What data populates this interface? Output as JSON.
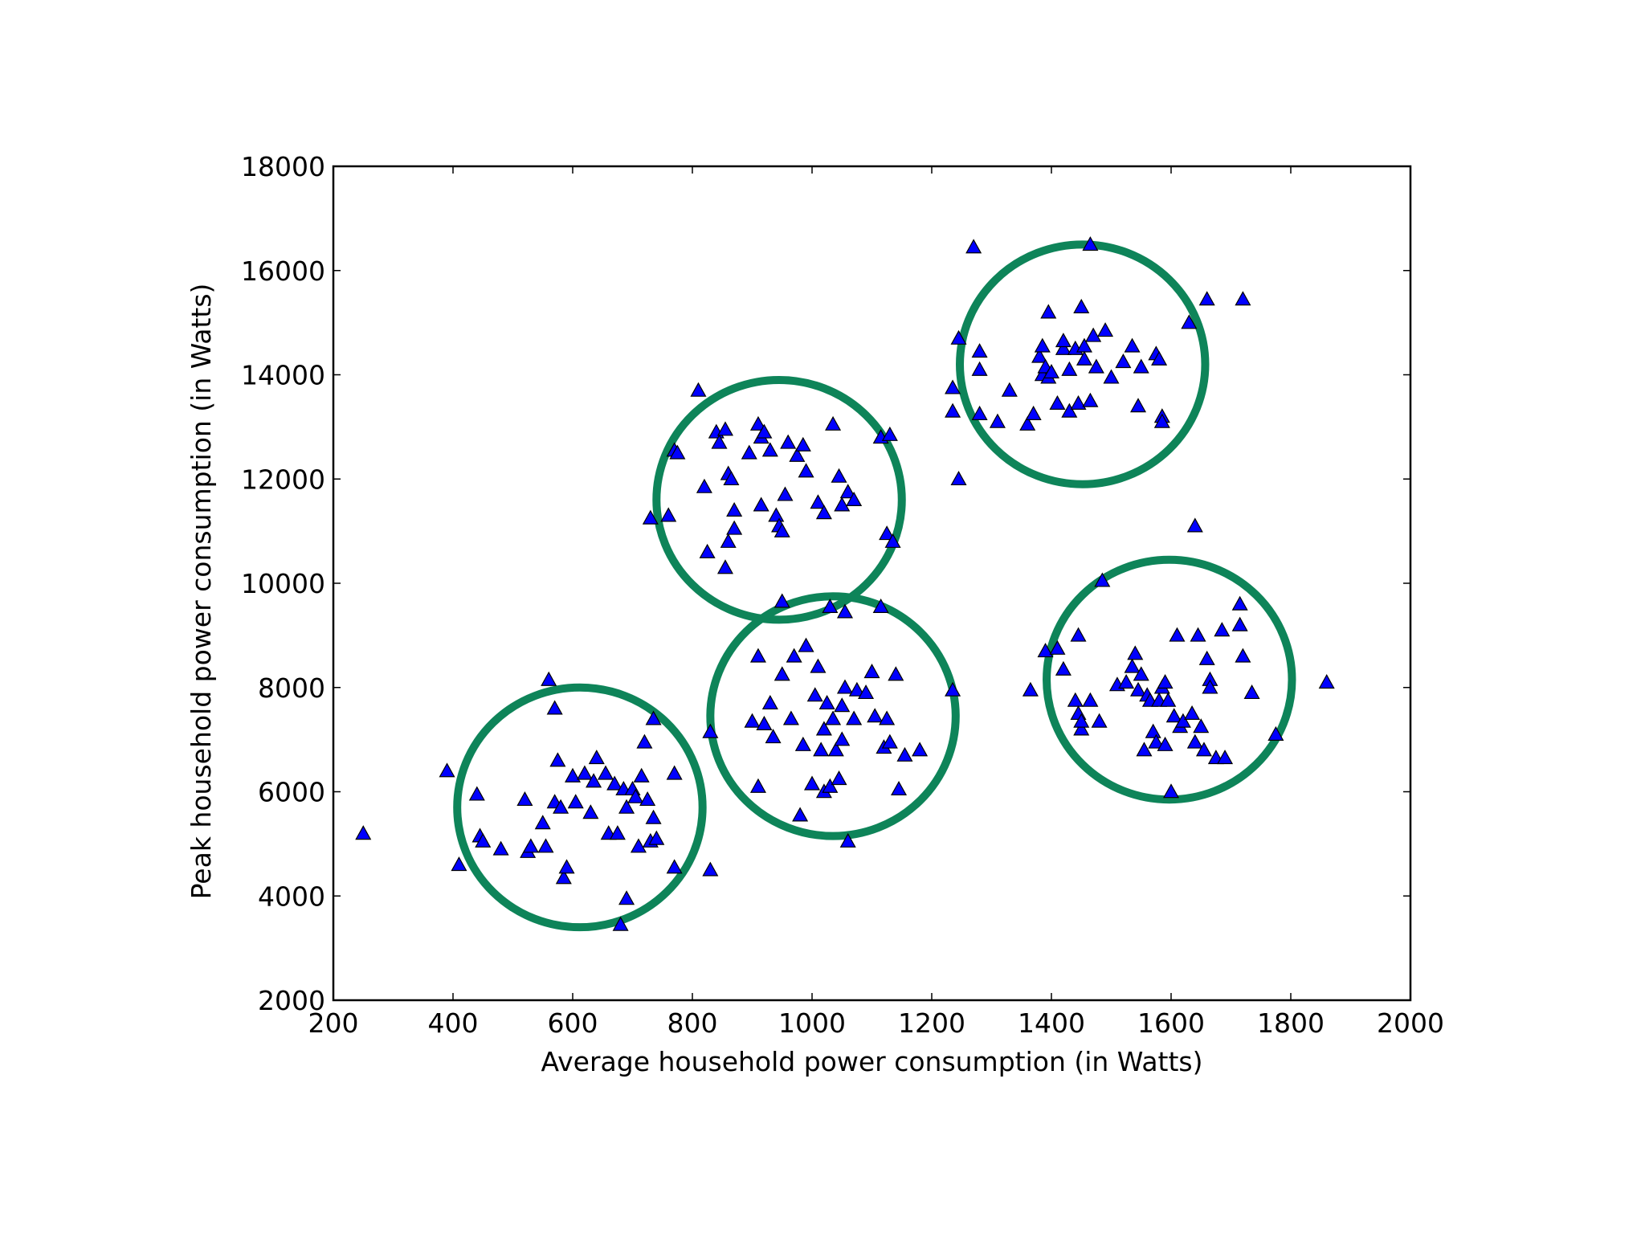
{
  "chart_data": {
    "type": "scatter",
    "title": "",
    "xlabel": "Average household power consumption (in Watts)",
    "ylabel": "Peak household power consumption (in Watts)",
    "xlim": [
      200,
      2000
    ],
    "ylim": [
      2000,
      18000
    ],
    "x_ticks": [
      200,
      400,
      600,
      800,
      1000,
      1200,
      1400,
      1600,
      1800,
      2000
    ],
    "x_tick_labels": [
      "200",
      "400",
      "600",
      "800",
      "1000",
      "1200",
      "1400",
      "1600",
      "1800",
      "2000"
    ],
    "y_ticks": [
      2000,
      4000,
      6000,
      8000,
      10000,
      12000,
      14000,
      16000,
      18000
    ],
    "y_tick_labels": [
      "2000",
      "4000",
      "6000",
      "8000",
      "10000",
      "12000",
      "14000",
      "16000",
      "18000"
    ],
    "grid": false,
    "legend": null,
    "marker": "triangle",
    "marker_color": "#0000ff",
    "marker_edge_color": "#000000",
    "circle_color": "#0e8459",
    "series": [
      {
        "points": [
          [
            250,
            5200
          ],
          [
            390,
            6400
          ],
          [
            410,
            4600
          ],
          [
            440,
            5950
          ],
          [
            445,
            5150
          ],
          [
            450,
            5050
          ],
          [
            480,
            4900
          ],
          [
            520,
            5850
          ],
          [
            525,
            4850
          ],
          [
            530,
            4950
          ],
          [
            550,
            5400
          ],
          [
            555,
            4950
          ],
          [
            560,
            8150
          ],
          [
            570,
            7600
          ],
          [
            575,
            6600
          ],
          [
            570,
            5800
          ],
          [
            580,
            5700
          ],
          [
            585,
            4350
          ],
          [
            590,
            4550
          ],
          [
            600,
            6300
          ],
          [
            605,
            5800
          ],
          [
            620,
            6350
          ],
          [
            630,
            5600
          ],
          [
            635,
            6200
          ],
          [
            640,
            6650
          ],
          [
            655,
            6350
          ],
          [
            660,
            5200
          ],
          [
            670,
            6150
          ],
          [
            675,
            5200
          ],
          [
            680,
            3450
          ],
          [
            685,
            6050
          ],
          [
            690,
            3950
          ],
          [
            690,
            5700
          ],
          [
            700,
            6050
          ],
          [
            705,
            5900
          ],
          [
            710,
            4950
          ],
          [
            715,
            6300
          ],
          [
            720,
            6950
          ],
          [
            725,
            5850
          ],
          [
            730,
            5050
          ],
          [
            735,
            5500
          ],
          [
            735,
            7400
          ],
          [
            740,
            5100
          ],
          [
            770,
            6350
          ],
          [
            770,
            4550
          ],
          [
            830,
            4500
          ],
          [
            830,
            7150
          ],
          [
            900,
            7350
          ],
          [
            910,
            6100
          ],
          [
            910,
            8600
          ],
          [
            920,
            7300
          ],
          [
            930,
            7700
          ],
          [
            935,
            7050
          ],
          [
            950,
            8250
          ],
          [
            965,
            7400
          ],
          [
            970,
            8600
          ],
          [
            980,
            5550
          ],
          [
            985,
            6900
          ],
          [
            990,
            8800
          ],
          [
            1000,
            6150
          ],
          [
            1005,
            7850
          ],
          [
            1010,
            8400
          ],
          [
            1015,
            6800
          ],
          [
            1020,
            6000
          ],
          [
            1020,
            7200
          ],
          [
            1025,
            7700
          ],
          [
            1030,
            6100
          ],
          [
            1035,
            7400
          ],
          [
            1040,
            6800
          ],
          [
            1045,
            6250
          ],
          [
            1050,
            7000
          ],
          [
            1050,
            7650
          ],
          [
            1055,
            8000
          ],
          [
            1060,
            5050
          ],
          [
            1070,
            7400
          ],
          [
            1075,
            7950
          ],
          [
            1090,
            7900
          ],
          [
            1100,
            8300
          ],
          [
            1105,
            7450
          ],
          [
            1120,
            6850
          ],
          [
            1125,
            7400
          ],
          [
            1130,
            6950
          ],
          [
            1140,
            8250
          ],
          [
            1145,
            6050
          ],
          [
            1155,
            6700
          ],
          [
            1180,
            6800
          ],
          [
            1235,
            7950
          ]
        ]
      },
      {
        "points": [
          [
            730,
            11250
          ],
          [
            760,
            11300
          ],
          [
            770,
            12550
          ],
          [
            775,
            12500
          ],
          [
            810,
            13700
          ],
          [
            820,
            11850
          ],
          [
            825,
            10600
          ],
          [
            840,
            12900
          ],
          [
            845,
            12700
          ],
          [
            855,
            12950
          ],
          [
            855,
            10300
          ],
          [
            860,
            10800
          ],
          [
            860,
            12100
          ],
          [
            865,
            12000
          ],
          [
            870,
            11050
          ],
          [
            870,
            11400
          ],
          [
            895,
            12500
          ],
          [
            910,
            13050
          ],
          [
            915,
            12800
          ],
          [
            915,
            11500
          ],
          [
            920,
            12900
          ],
          [
            930,
            12550
          ],
          [
            940,
            11300
          ],
          [
            945,
            11100
          ],
          [
            950,
            11000
          ],
          [
            955,
            11700
          ],
          [
            960,
            12700
          ],
          [
            975,
            12450
          ],
          [
            985,
            12650
          ],
          [
            990,
            12150
          ],
          [
            1010,
            11550
          ],
          [
            1020,
            11350
          ],
          [
            1035,
            13050
          ],
          [
            1045,
            12050
          ],
          [
            1050,
            11500
          ],
          [
            1060,
            11750
          ],
          [
            1070,
            11600
          ],
          [
            1115,
            12800
          ],
          [
            1130,
            12850
          ],
          [
            1125,
            10950
          ],
          [
            1135,
            10800
          ],
          [
            950,
            9650
          ],
          [
            1030,
            9550
          ],
          [
            1055,
            9450
          ],
          [
            1115,
            9550
          ]
        ]
      },
      {
        "points": [
          [
            1235,
            13750
          ],
          [
            1235,
            13300
          ],
          [
            1245,
            12000
          ],
          [
            1245,
            14700
          ],
          [
            1270,
            16450
          ],
          [
            1280,
            14450
          ],
          [
            1280,
            14100
          ],
          [
            1280,
            13250
          ],
          [
            1310,
            13100
          ],
          [
            1330,
            13700
          ],
          [
            1360,
            13050
          ],
          [
            1370,
            13250
          ],
          [
            1380,
            14350
          ],
          [
            1385,
            14000
          ],
          [
            1385,
            14550
          ],
          [
            1390,
            14150
          ],
          [
            1395,
            13950
          ],
          [
            1395,
            15200
          ],
          [
            1400,
            14050
          ],
          [
            1410,
            13450
          ],
          [
            1420,
            14500
          ],
          [
            1420,
            14650
          ],
          [
            1430,
            13300
          ],
          [
            1430,
            14100
          ],
          [
            1440,
            14500
          ],
          [
            1445,
            13450
          ],
          [
            1450,
            15300
          ],
          [
            1455,
            14550
          ],
          [
            1455,
            14300
          ],
          [
            1465,
            16500
          ],
          [
            1465,
            13500
          ],
          [
            1470,
            14750
          ],
          [
            1475,
            14150
          ],
          [
            1490,
            14850
          ],
          [
            1500,
            13950
          ],
          [
            1520,
            14250
          ],
          [
            1535,
            14550
          ],
          [
            1545,
            13400
          ],
          [
            1550,
            14150
          ],
          [
            1575,
            14400
          ],
          [
            1580,
            14300
          ],
          [
            1585,
            13200
          ],
          [
            1585,
            13100
          ],
          [
            1630,
            15000
          ],
          [
            1660,
            15450
          ],
          [
            1720,
            15450
          ],
          [
            1640,
            11100
          ]
        ]
      },
      {
        "points": [
          [
            1365,
            7950
          ],
          [
            1390,
            8700
          ],
          [
            1410,
            8750
          ],
          [
            1420,
            8350
          ],
          [
            1440,
            7750
          ],
          [
            1445,
            9000
          ],
          [
            1445,
            7500
          ],
          [
            1450,
            7200
          ],
          [
            1450,
            7350
          ],
          [
            1465,
            7750
          ],
          [
            1480,
            7350
          ],
          [
            1485,
            10050
          ],
          [
            1510,
            8050
          ],
          [
            1525,
            8100
          ],
          [
            1535,
            8400
          ],
          [
            1540,
            8650
          ],
          [
            1545,
            7950
          ],
          [
            1550,
            8250
          ],
          [
            1555,
            6800
          ],
          [
            1560,
            7850
          ],
          [
            1565,
            7750
          ],
          [
            1570,
            7150
          ],
          [
            1575,
            6950
          ],
          [
            1580,
            7750
          ],
          [
            1585,
            8000
          ],
          [
            1590,
            6900
          ],
          [
            1590,
            8100
          ],
          [
            1595,
            7750
          ],
          [
            1600,
            6000
          ],
          [
            1605,
            7450
          ],
          [
            1610,
            9000
          ],
          [
            1615,
            7250
          ],
          [
            1620,
            7350
          ],
          [
            1635,
            7500
          ],
          [
            1640,
            6950
          ],
          [
            1645,
            9000
          ],
          [
            1650,
            7250
          ],
          [
            1655,
            6800
          ],
          [
            1660,
            8550
          ],
          [
            1665,
            8150
          ],
          [
            1665,
            8000
          ],
          [
            1675,
            6650
          ],
          [
            1685,
            9100
          ],
          [
            1690,
            6650
          ],
          [
            1715,
            9200
          ],
          [
            1715,
            9600
          ],
          [
            1720,
            8600
          ],
          [
            1735,
            7900
          ],
          [
            1775,
            7100
          ],
          [
            1860,
            8100
          ]
        ]
      }
    ],
    "circles": [
      {
        "center": [
          612,
          5700
        ],
        "radius_x": 205,
        "radius_y": 2300
      },
      {
        "center": [
          945,
          11600
        ],
        "radius_x": 205,
        "radius_y": 2300
      },
      {
        "center": [
          1035,
          7450
        ],
        "radius_x": 205,
        "radius_y": 2300
      },
      {
        "center": [
          1452,
          14200
        ],
        "radius_x": 205,
        "radius_y": 2300
      },
      {
        "center": [
          1597,
          8150
        ],
        "radius_x": 205,
        "radius_y": 2300
      }
    ]
  }
}
